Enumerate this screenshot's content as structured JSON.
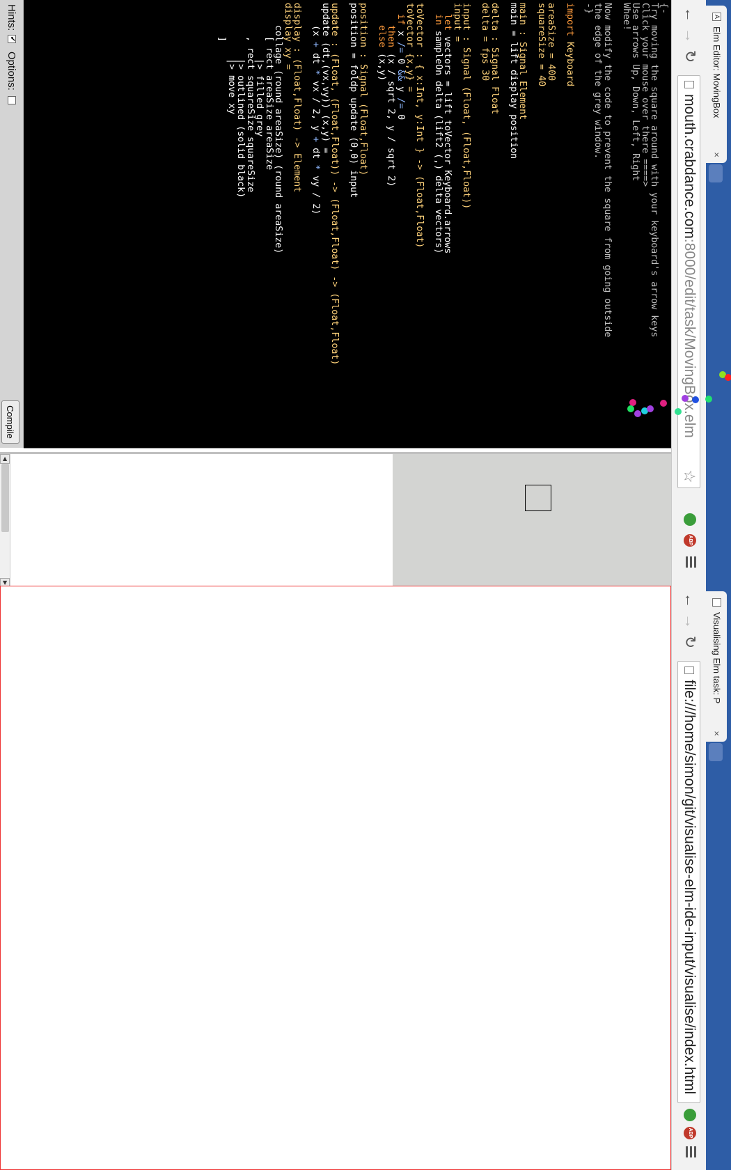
{
  "editor_window": {
    "tab_title": "Elm Editor: MovingBox",
    "url_host": "mouth.crabdance.com",
    "url_rest": ":8000/edit/task/MovingBox.elm",
    "code_lines": [
      [
        [
          "cm",
          "{-"
        ]
      ],
      [
        [
          "cm",
          "Try moving the square around with your keyboard's arrow keys"
        ]
      ],
      [
        [
          "cm",
          "Click your mouse over there ====>"
        ]
      ],
      [
        [
          "cm",
          "Use arrows Up, Down, Left, Right"
        ]
      ],
      [
        [
          "cm",
          "Whee!"
        ]
      ],
      [
        [
          "cm",
          ""
        ]
      ],
      [
        [
          "cm",
          "Now modify the code to prevent the square from going outside"
        ]
      ],
      [
        [
          "cm",
          "the edge of the grey window."
        ]
      ],
      [
        [
          "cm",
          "-}"
        ]
      ],
      [
        [
          "",
          ""
        ]
      ],
      [
        [
          "kw",
          "import"
        ],
        [
          "ty",
          " Keyboard"
        ]
      ],
      [
        [
          "",
          ""
        ]
      ],
      [
        [
          "ty",
          "areaSize = 400"
        ]
      ],
      [
        [
          "ty",
          "squareSize = 40"
        ]
      ],
      [
        [
          "",
          ""
        ]
      ],
      [
        [
          "ty",
          "main : Signal Element"
        ]
      ],
      [
        [
          "",
          "main = lift display position"
        ]
      ],
      [
        [
          "",
          ""
        ]
      ],
      [
        [
          "ty",
          "delta : Signal Float"
        ]
      ],
      [
        [
          "ty",
          "delta = fps 30"
        ]
      ],
      [
        [
          "",
          ""
        ]
      ],
      [
        [
          "ty",
          "input : Signal (Float, (Float,Float))"
        ]
      ],
      [
        [
          "ty",
          "input ="
        ]
      ],
      [
        [
          "kw",
          "  let"
        ],
        [
          "",
          " vectors = lift toVector Keyboard.arrows"
        ]
      ],
      [
        [
          "kw",
          "  in"
        ],
        [
          "",
          " sampleOn delta (lift2 (,) delta vectors)"
        ]
      ],
      [
        [
          "",
          ""
        ]
      ],
      [
        [
          "ty",
          "toVector : { x:Int, y:Int } -> (Float,Float)"
        ]
      ],
      [
        [
          "ty",
          "toVector {x,y} ="
        ]
      ],
      [
        [
          "kw",
          "  if"
        ],
        [
          "",
          " x "
        ],
        [
          "op",
          "/="
        ],
        [
          "",
          " 0 "
        ],
        [
          "op",
          "&&"
        ],
        [
          "",
          " y "
        ],
        [
          "op",
          "/="
        ],
        [
          "",
          " 0"
        ]
      ],
      [
        [
          "kw",
          "    then"
        ],
        [
          "",
          " (x / sqrt 2, y / sqrt 2)"
        ]
      ],
      [
        [
          "kw",
          "    else"
        ],
        [
          "",
          " (x,y)"
        ]
      ],
      [
        [
          "",
          ""
        ]
      ],
      [
        [
          "ty",
          "position : Signal (Float,Float)"
        ]
      ],
      [
        [
          "",
          "position = foldp update (0,0) input"
        ]
      ],
      [
        [
          "",
          ""
        ]
      ],
      [
        [
          "ty",
          "update : (Float, (Float,Float)) -> (Float,Float) -> (Float,Float)"
        ]
      ],
      [
        [
          "",
          "update (dt,(vx,vy)) (x,y) ="
        ]
      ],
      [
        [
          "",
          "    (x "
        ],
        [
          "op",
          "+"
        ],
        [
          "",
          " dt "
        ],
        [
          "op",
          "*"
        ],
        [
          "",
          " vx / 2, y "
        ],
        [
          "op",
          "+"
        ],
        [
          "",
          " dt "
        ],
        [
          "op",
          "*"
        ],
        [
          "",
          " vy / 2)"
        ]
      ],
      [
        [
          "",
          ""
        ]
      ],
      [
        [
          "ty",
          "display : (Float,Float) -> Element"
        ]
      ],
      [
        [
          "ty",
          "display xy ="
        ]
      ],
      [
        [
          "",
          "    collage (round areaSize) (round areaSize)"
        ]
      ],
      [
        [
          "",
          "      [ rect areaSize areaSize"
        ]
      ],
      [
        [
          "",
          "          |> filled grey"
        ]
      ],
      [
        [
          "",
          "      , rect squareSize squareSize"
        ]
      ],
      [
        [
          "",
          "          |> outlined (solid black)"
        ]
      ],
      [
        [
          "",
          "          |> move xy"
        ]
      ],
      [
        [
          "",
          "      ]"
        ]
      ]
    ],
    "hints_label": "Hints:",
    "options_label": "Options:",
    "hints_checked": true,
    "options_checked": false,
    "compile_label": "Compile"
  },
  "vis_window": {
    "tab_title": "Visualising Elm task: P",
    "url": "file:///home/simon/git/visualise-elm-ide-input/visualise/index.html"
  },
  "scatter_dots": [
    [
      909,
      578,
      "#e02080"
    ],
    [
      906,
      587,
      "#20e060"
    ],
    [
      916,
      594,
      "#a040e0"
    ],
    [
      926,
      590,
      "#20d0e0"
    ],
    [
      934,
      587,
      "#a040e0"
    ],
    [
      953,
      579,
      "#e02080"
    ],
    [
      974,
      591,
      "#30e090"
    ],
    [
      984,
      572,
      "#a040e0"
    ],
    [
      999,
      574,
      "#2050e0"
    ],
    [
      1018,
      573,
      "#20e070"
    ],
    [
      1038,
      538,
      "#8fe020"
    ],
    [
      1046,
      542,
      "#ff2020"
    ],
    [
      1058,
      534,
      "#20e0c0"
    ],
    [
      1065,
      520,
      "#20e090"
    ],
    [
      1070,
      531,
      "#ff8020"
    ],
    [
      1075,
      533,
      "#40e040"
    ],
    [
      1082,
      538,
      "#c0f020"
    ],
    [
      1080,
      542,
      "#30e090"
    ],
    [
      1084,
      549,
      "#30e090"
    ],
    [
      1130,
      552,
      "#2090f0"
    ],
    [
      1181,
      520,
      "#20e090"
    ],
    [
      1196,
      530,
      "#ff1060"
    ],
    [
      1227,
      542,
      "#30e090"
    ],
    [
      1238,
      548,
      "#ff1060"
    ],
    [
      1261,
      567,
      "#2090f0"
    ],
    [
      1296,
      560,
      "#20e060"
    ],
    [
      1316,
      506,
      "#a040e0"
    ],
    [
      1336,
      525,
      "#ff2020"
    ],
    [
      1344,
      501,
      "#ffd020"
    ],
    [
      1336,
      508,
      "#20e080"
    ],
    [
      1403,
      519,
      "#a040e0"
    ],
    [
      1413,
      511,
      "#ff2020"
    ],
    [
      1451,
      515,
      "#ffd020"
    ],
    [
      1470,
      530,
      "#ff1060"
    ],
    [
      1477,
      470,
      "#a040e0"
    ],
    [
      1489,
      562,
      "#ff1060"
    ],
    [
      1495,
      590,
      "#8fe020"
    ],
    [
      1510,
      523,
      "#30e090"
    ],
    [
      1515,
      515,
      "#ff2020"
    ],
    [
      1513,
      479,
      "#ff1060"
    ],
    [
      1520,
      431,
      "#30e090"
    ],
    [
      1521,
      504,
      "#ff2020"
    ],
    [
      1538,
      568,
      "#ff1060"
    ],
    [
      1548,
      597,
      "#30e090"
    ],
    [
      1550,
      598,
      "#ff2020"
    ],
    [
      1560,
      592,
      "#3070f0"
    ],
    [
      1569,
      585,
      "#ff1060"
    ],
    [
      1570,
      573,
      "#2060f0"
    ],
    [
      1580,
      558,
      "#ff1060"
    ],
    [
      1585,
      552,
      "#20e060"
    ],
    [
      1586,
      541,
      "#30e090"
    ],
    [
      1590,
      531,
      "#ff1060"
    ],
    [
      1600,
      535,
      "#a040e0"
    ],
    [
      1623,
      563,
      "#a040e0"
    ],
    [
      1624,
      529,
      "#ff1060"
    ],
    [
      1629,
      522,
      "#ff1060"
    ],
    [
      1632,
      542,
      "#2080f0"
    ],
    [
      1646,
      636,
      "#2090f0"
    ],
    [
      1676,
      644,
      "#40c0ff"
    ],
    [
      1660,
      680,
      "#ff1060"
    ],
    [
      1675,
      707,
      "#8fe020"
    ],
    [
      1690,
      727,
      "#2060f0"
    ],
    [
      1701,
      723,
      "#ff1060"
    ],
    [
      1716,
      706,
      "#2090f0"
    ],
    [
      1742,
      686,
      "#20c0ff"
    ],
    [
      1748,
      709,
      "#a040e0"
    ]
  ]
}
